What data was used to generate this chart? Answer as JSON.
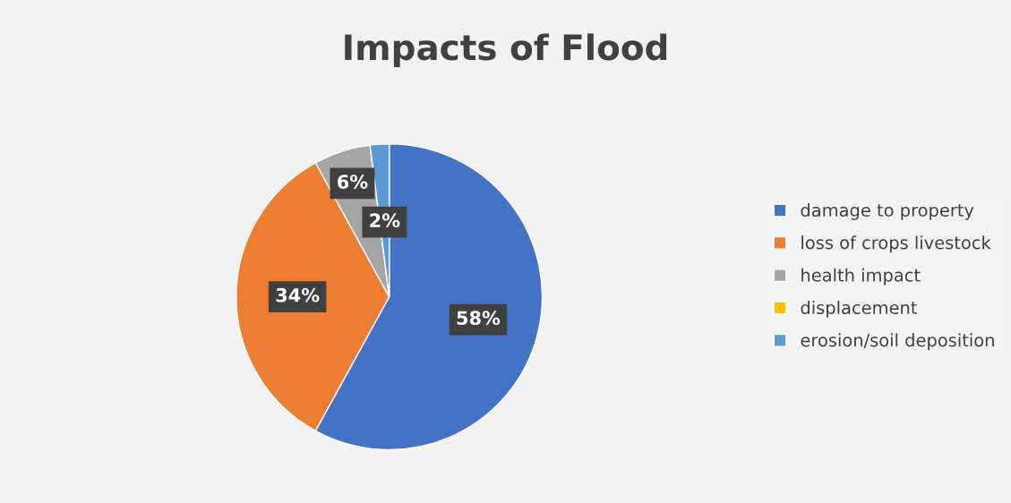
{
  "chart_data": {
    "type": "pie",
    "title": "Impacts of Flood",
    "categories": [
      "damage to property",
      "loss of crops livestock",
      "health impact",
      "displacement",
      "erosion/soil deposition"
    ],
    "values": [
      58,
      34,
      6,
      0,
      2
    ],
    "colors": [
      "#4472c4",
      "#ed7d31",
      "#a5a5a5",
      "#ffc000",
      "#5b9bd5"
    ],
    "value_labels": [
      "58%",
      "34%",
      "6%",
      null,
      "2%"
    ],
    "legend": "right"
  }
}
